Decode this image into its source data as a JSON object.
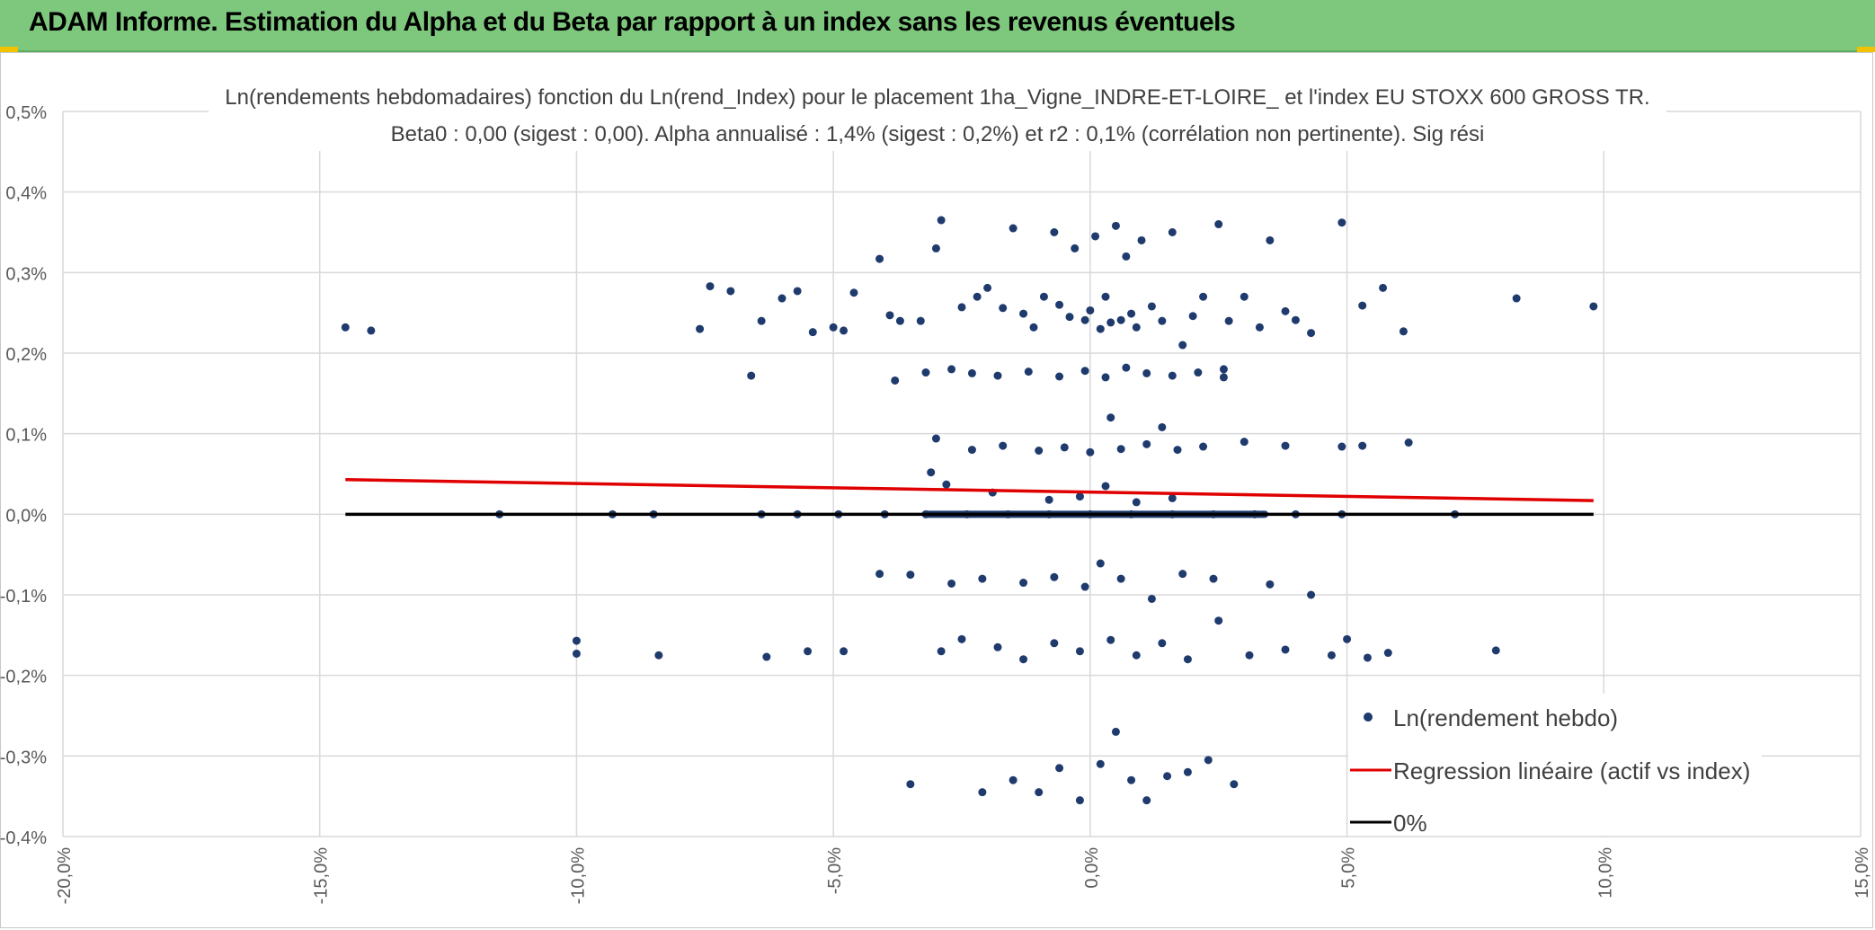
{
  "header": {
    "title": "ADAM Informe. Estimation du Alpha et du Beta par rapport à un index sans les revenus éventuels"
  },
  "colors": {
    "header_bg": "#7dc87d",
    "points": "#1f3b6e",
    "regression": "#e00000",
    "zero_line": "#000000",
    "grid": "#d9d9d9"
  },
  "chart_data": {
    "type": "scatter",
    "title": "Ln(rendements hebdomadaires) fonction du Ln(rend_Index) pour le placement 1ha_Vigne_INDRE-ET-LOIRE_ et l'index EU STOXX 600 GROSS TR.",
    "subtitle": "Beta0 : 0,00 (sigest : 0,00). Alpha annualisé : 1,4% (sigest : 0,2%) et r2 : 0,1% (corrélation non pertinente). Sig rési",
    "xlabel": "",
    "ylabel": "",
    "xlim": [
      -20,
      15
    ],
    "ylim": [
      -0.4,
      0.5
    ],
    "x_ticks": [
      "-20,0%",
      "-15,0%",
      "-10,0%",
      "-5,0%",
      "0,0%",
      "5,0%",
      "10,0%",
      "15,0%"
    ],
    "y_ticks": [
      "-0,4%",
      "-0,3%",
      "-0,2%",
      "-0,1%",
      "0,0%",
      "0,1%",
      "0,2%",
      "0,3%",
      "0,4%",
      "0,5%"
    ],
    "grid": true,
    "legend_position": "bottom-right",
    "series": [
      {
        "name": "Ln(rendement hebdo)",
        "kind": "scatter",
        "points": [
          [
            -14.5,
            0.232
          ],
          [
            -14.0,
            0.228
          ],
          [
            -7.6,
            0.23
          ],
          [
            -7.4,
            0.283
          ],
          [
            -7.0,
            0.277
          ],
          [
            -6.4,
            0.24
          ],
          [
            -6.0,
            0.268
          ],
          [
            -5.7,
            0.277
          ],
          [
            -5.4,
            0.226
          ],
          [
            -5.0,
            0.232
          ],
          [
            -4.8,
            0.228
          ],
          [
            -4.6,
            0.275
          ],
          [
            -4.1,
            0.317
          ],
          [
            -3.9,
            0.247
          ],
          [
            -3.7,
            0.24
          ],
          [
            -3.3,
            0.24
          ],
          [
            -3.0,
            0.33
          ],
          [
            -2.9,
            0.365
          ],
          [
            -2.5,
            0.257
          ],
          [
            -2.2,
            0.27
          ],
          [
            -2.0,
            0.281
          ],
          [
            -1.7,
            0.256
          ],
          [
            -1.5,
            0.355
          ],
          [
            -1.3,
            0.249
          ],
          [
            -1.1,
            0.232
          ],
          [
            -0.9,
            0.27
          ],
          [
            -0.7,
            0.35
          ],
          [
            -0.6,
            0.26
          ],
          [
            -0.4,
            0.245
          ],
          [
            -0.3,
            0.33
          ],
          [
            -0.1,
            0.241
          ],
          [
            0.0,
            0.253
          ],
          [
            0.1,
            0.345
          ],
          [
            0.2,
            0.23
          ],
          [
            0.3,
            0.27
          ],
          [
            0.4,
            0.238
          ],
          [
            0.5,
            0.358
          ],
          [
            0.6,
            0.241
          ],
          [
            0.7,
            0.32
          ],
          [
            0.8,
            0.249
          ],
          [
            0.9,
            0.232
          ],
          [
            1.0,
            0.34
          ],
          [
            1.2,
            0.258
          ],
          [
            1.4,
            0.24
          ],
          [
            1.6,
            0.35
          ],
          [
            1.8,
            0.21
          ],
          [
            2.0,
            0.246
          ],
          [
            2.2,
            0.27
          ],
          [
            2.5,
            0.36
          ],
          [
            2.7,
            0.24
          ],
          [
            3.0,
            0.27
          ],
          [
            3.3,
            0.232
          ],
          [
            3.5,
            0.34
          ],
          [
            3.8,
            0.252
          ],
          [
            4.0,
            0.241
          ],
          [
            4.3,
            0.225
          ],
          [
            4.9,
            0.362
          ],
          [
            5.3,
            0.259
          ],
          [
            5.7,
            0.281
          ],
          [
            6.1,
            0.227
          ],
          [
            8.3,
            0.268
          ],
          [
            9.8,
            0.258
          ],
          [
            -6.6,
            0.172
          ],
          [
            -3.8,
            0.166
          ],
          [
            -3.2,
            0.176
          ],
          [
            -2.7,
            0.18
          ],
          [
            -2.3,
            0.175
          ],
          [
            -1.8,
            0.172
          ],
          [
            -1.2,
            0.177
          ],
          [
            -0.6,
            0.171
          ],
          [
            -0.1,
            0.178
          ],
          [
            0.3,
            0.17
          ],
          [
            0.7,
            0.182
          ],
          [
            1.1,
            0.175
          ],
          [
            1.6,
            0.172
          ],
          [
            2.1,
            0.176
          ],
          [
            2.6,
            0.17
          ],
          [
            2.6,
            0.18
          ],
          [
            -3.0,
            0.094
          ],
          [
            -2.3,
            0.08
          ],
          [
            -1.7,
            0.085
          ],
          [
            -1.0,
            0.079
          ],
          [
            -0.5,
            0.083
          ],
          [
            0.0,
            0.077
          ],
          [
            0.4,
            0.12
          ],
          [
            0.6,
            0.081
          ],
          [
            1.1,
            0.087
          ],
          [
            1.4,
            0.108
          ],
          [
            1.7,
            0.08
          ],
          [
            2.2,
            0.084
          ],
          [
            3.0,
            0.09
          ],
          [
            3.8,
            0.085
          ],
          [
            4.9,
            0.084
          ],
          [
            5.3,
            0.085
          ],
          [
            6.2,
            0.089
          ],
          [
            -3.1,
            0.052
          ],
          [
            -2.8,
            0.037
          ],
          [
            -1.9,
            0.027
          ],
          [
            -0.8,
            0.018
          ],
          [
            -0.2,
            0.022
          ],
          [
            0.3,
            0.035
          ],
          [
            0.9,
            0.015
          ],
          [
            1.6,
            0.02
          ],
          [
            -11.5,
            0.0
          ],
          [
            -9.3,
            0.0
          ],
          [
            -8.5,
            0.0
          ],
          [
            -6.4,
            0.0
          ],
          [
            -5.7,
            0.0
          ],
          [
            -4.9,
            0.0
          ],
          [
            -4.0,
            0.0
          ],
          [
            -3.2,
            0.0
          ],
          [
            -2.4,
            0.0
          ],
          [
            -1.6,
            0.0
          ],
          [
            -0.8,
            0.0
          ],
          [
            0.0,
            0.0
          ],
          [
            0.8,
            0.0
          ],
          [
            1.6,
            0.0
          ],
          [
            2.4,
            0.0
          ],
          [
            3.2,
            0.0
          ],
          [
            4.0,
            0.0
          ],
          [
            4.9,
            0.0
          ],
          [
            7.1,
            0.0
          ],
          [
            -4.1,
            -0.074
          ],
          [
            -3.5,
            -0.075
          ],
          [
            -2.7,
            -0.086
          ],
          [
            -2.1,
            -0.08
          ],
          [
            -1.3,
            -0.085
          ],
          [
            -0.7,
            -0.078
          ],
          [
            -0.1,
            -0.09
          ],
          [
            0.2,
            -0.061
          ],
          [
            0.6,
            -0.08
          ],
          [
            1.2,
            -0.105
          ],
          [
            1.8,
            -0.074
          ],
          [
            2.4,
            -0.08
          ],
          [
            3.5,
            -0.087
          ],
          [
            4.3,
            -0.1
          ],
          [
            -10.0,
            -0.157
          ],
          [
            -10.0,
            -0.173
          ],
          [
            -8.4,
            -0.175
          ],
          [
            -6.3,
            -0.177
          ],
          [
            -5.5,
            -0.17
          ],
          [
            -4.8,
            -0.17
          ],
          [
            -2.9,
            -0.17
          ],
          [
            -2.5,
            -0.155
          ],
          [
            -1.8,
            -0.165
          ],
          [
            -1.3,
            -0.18
          ],
          [
            -0.7,
            -0.16
          ],
          [
            -0.2,
            -0.17
          ],
          [
            0.4,
            -0.156
          ],
          [
            0.9,
            -0.175
          ],
          [
            1.4,
            -0.16
          ],
          [
            1.9,
            -0.18
          ],
          [
            2.5,
            -0.132
          ],
          [
            3.1,
            -0.175
          ],
          [
            3.8,
            -0.168
          ],
          [
            4.7,
            -0.175
          ],
          [
            5.0,
            -0.155
          ],
          [
            5.4,
            -0.178
          ],
          [
            5.8,
            -0.172
          ],
          [
            7.9,
            -0.169
          ],
          [
            -3.5,
            -0.335
          ],
          [
            -2.1,
            -0.345
          ],
          [
            -1.5,
            -0.33
          ],
          [
            -1.0,
            -0.345
          ],
          [
            -0.6,
            -0.315
          ],
          [
            -0.2,
            -0.355
          ],
          [
            0.2,
            -0.31
          ],
          [
            0.5,
            -0.27
          ],
          [
            0.8,
            -0.33
          ],
          [
            1.1,
            -0.355
          ],
          [
            1.5,
            -0.325
          ],
          [
            1.9,
            -0.32
          ],
          [
            2.3,
            -0.305
          ],
          [
            2.8,
            -0.335
          ]
        ]
      },
      {
        "name": "Regression linéaire (actif vs index)",
        "kind": "line",
        "points": [
          [
            -14.5,
            0.043
          ],
          [
            9.8,
            0.017
          ]
        ]
      },
      {
        "name": "0%",
        "kind": "line",
        "points": [
          [
            -14.5,
            0.0
          ],
          [
            9.8,
            0.0
          ]
        ]
      }
    ]
  }
}
